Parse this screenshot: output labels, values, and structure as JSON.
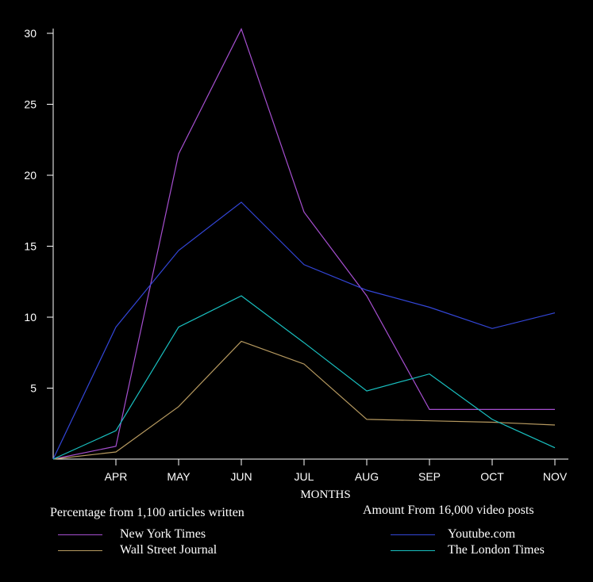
{
  "chart_data": {
    "type": "line",
    "xlabel": "MONTHS",
    "ylabel": "",
    "categories": [
      "",
      "APR",
      "MAY",
      "JUN",
      "JUL",
      "AUG",
      "SEP",
      "OCT",
      "NOV"
    ],
    "ylim": [
      0,
      30
    ],
    "yticks": [
      5,
      10,
      15,
      20,
      25,
      30
    ],
    "series": [
      {
        "name": "New York Times",
        "color": "#a64fd0",
        "values": [
          0,
          0.9,
          21.5,
          30.3,
          17.4,
          11.5,
          3.5,
          3.5,
          3.5
        ]
      },
      {
        "name": "Wall Street Journal",
        "color": "#b79a60",
        "values": [
          0,
          0.5,
          3.7,
          8.3,
          6.7,
          2.8,
          2.7,
          2.6,
          2.4
        ]
      },
      {
        "name": "Youtube.com",
        "color": "#3346d8",
        "values": [
          0,
          9.3,
          14.7,
          18.1,
          13.7,
          11.9,
          10.7,
          9.2,
          10.3
        ]
      },
      {
        "name": "The London Times",
        "color": "#19c0c0",
        "values": [
          0,
          2.0,
          9.3,
          11.5,
          8.2,
          4.8,
          6.0,
          2.8,
          0.8
        ]
      }
    ],
    "grid": false,
    "legend": "bottom"
  },
  "legend": {
    "left_title": "Percentage from 1,100 articles written",
    "right_title": "Amount From 16,000 video posts"
  }
}
